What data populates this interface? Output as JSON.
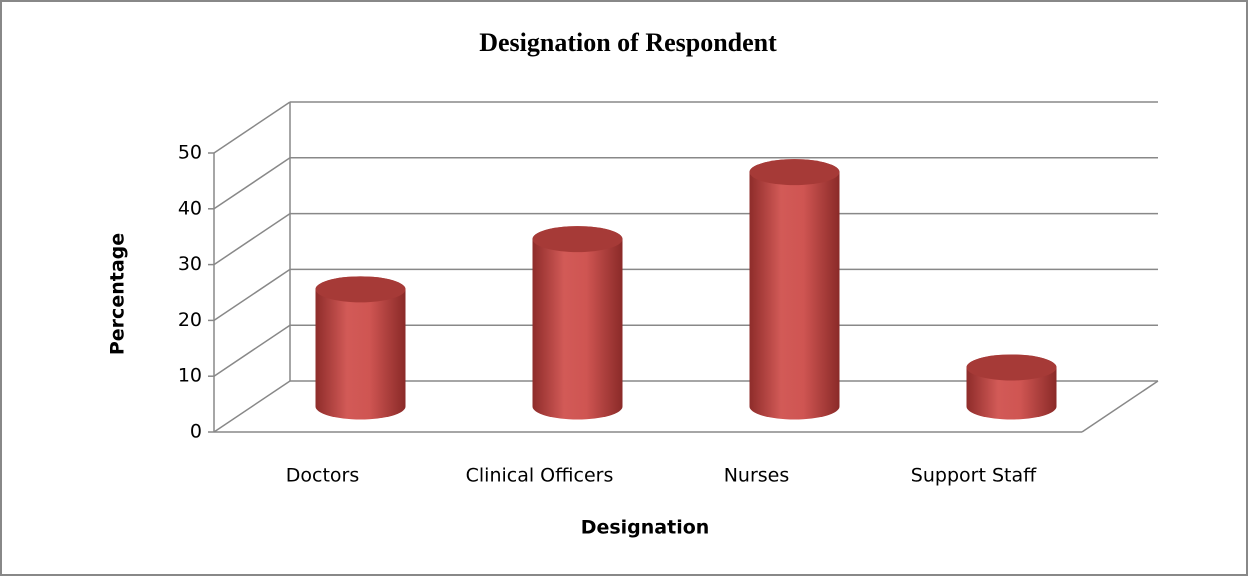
{
  "chart_data": {
    "type": "bar",
    "title": "Designation of Respondent",
    "categories": [
      "Doctors",
      "Clinical Officers",
      "Nurses",
      "Support Staff"
    ],
    "values": [
      21,
      30,
      42,
      7
    ],
    "color": "#c0504d",
    "ylim": [
      0,
      50
    ],
    "yticks": [
      0,
      10,
      20,
      30,
      40,
      50
    ],
    "xlabel": "Designation",
    "ylabel": "Percentage",
    "grid": true
  }
}
